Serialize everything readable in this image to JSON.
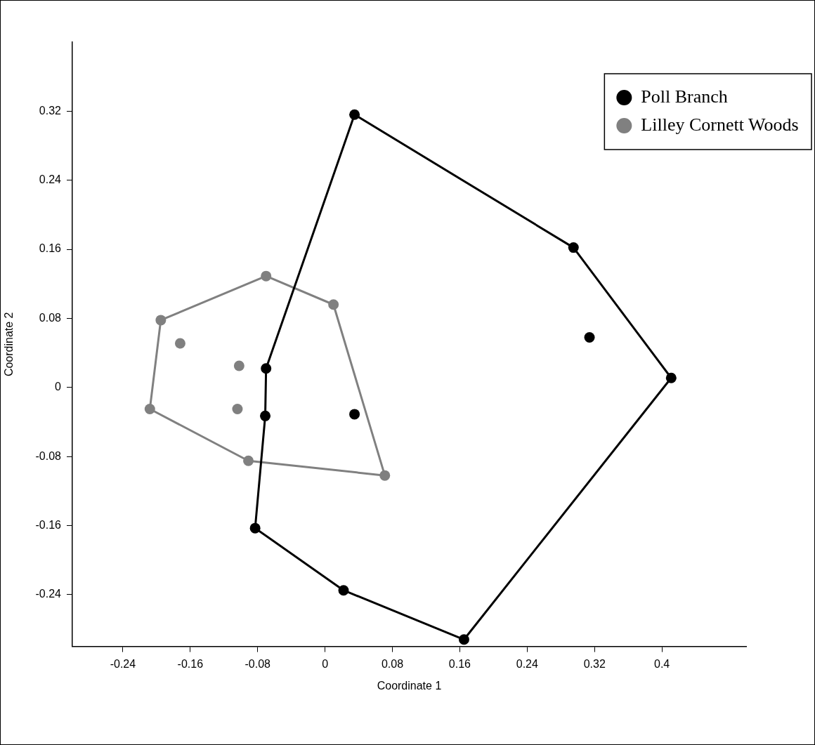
{
  "chart_data": {
    "type": "scatter",
    "xlabel": "Coordinate 1",
    "ylabel": "Coordinate 2",
    "xlim": [
      -0.3,
      0.5
    ],
    "ylim": [
      -0.3,
      0.4
    ],
    "xticks": [
      -0.24,
      -0.16,
      -0.08,
      0,
      0.08,
      0.16,
      0.24,
      0.32,
      0.4
    ],
    "yticks": [
      -0.24,
      -0.16,
      -0.08,
      0,
      0.08,
      0.16,
      0.24,
      0.32
    ],
    "grid": false,
    "legend": "top right",
    "marker": "circle",
    "series": [
      {
        "name": "Poll Branch",
        "type": "scatter",
        "color": "#000000",
        "x": [
          0.035,
          0.295,
          0.314,
          0.411,
          0.165,
          0.022,
          -0.083,
          -0.071,
          -0.07,
          0.035
        ],
        "values": [
          0.316,
          0.162,
          0.058,
          0.011,
          -0.292,
          -0.235,
          -0.163,
          -0.033,
          0.022,
          -0.031
        ]
      },
      {
        "name": "Lilley Cornett Woods",
        "type": "scatter",
        "color": "#808080",
        "x": [
          -0.07,
          0.01,
          0.071,
          -0.091,
          -0.208,
          -0.195,
          -0.172,
          -0.102,
          -0.104
        ],
        "values": [
          0.129,
          0.096,
          -0.102,
          -0.085,
          -0.025,
          0.078,
          0.051,
          0.025,
          -0.025
        ]
      },
      {
        "type": "line",
        "color": "#000000",
        "marker": "none",
        "line_style": "solid",
        "x": [
          -0.083,
          -0.071,
          -0.07,
          0.035,
          0.295,
          0.411
        ],
        "values": [
          -0.163,
          -0.033,
          0.022,
          0.316,
          0.162,
          0.011
        ]
      },
      {
        "type": "line",
        "color": "#000000",
        "marker": "none",
        "line_style": "solid",
        "x": [
          -0.083,
          0.022,
          0.165,
          0.411
        ],
        "values": [
          -0.163,
          -0.235,
          -0.292,
          0.011
        ]
      },
      {
        "type": "line",
        "color": "#808080",
        "marker": "none",
        "line_style": "solid",
        "x": [
          -0.208,
          -0.195,
          -0.07,
          0.01,
          0.071
        ],
        "values": [
          -0.025,
          0.078,
          0.129,
          0.096,
          -0.102
        ]
      },
      {
        "type": "line",
        "color": "#808080",
        "marker": "none",
        "line_style": "solid",
        "x": [
          -0.208,
          -0.091,
          0.071
        ],
        "values": [
          -0.025,
          -0.085,
          -0.102
        ]
      }
    ]
  }
}
